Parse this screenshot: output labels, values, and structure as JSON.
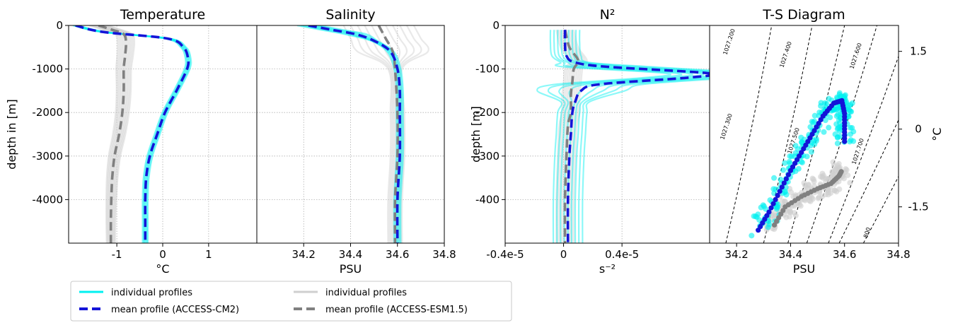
{
  "colors": {
    "cm2_individual": "#00f0f0",
    "cm2_mean": "#1414d8",
    "esm_individual": "#cfcfcf",
    "esm_mean": "#808080",
    "grid": "#b0b0b0",
    "isopycnal": "#000000"
  },
  "legend": {
    "cm2_individual_label": "individual profiles",
    "cm2_mean_label": "mean profile  (ACCESS-CM2)",
    "esm_individual_label": "individual profiles",
    "esm_mean_label": "mean profile  (ACCESS-ESM1.5)"
  },
  "chart_data": [
    {
      "type": "line",
      "title": "Temperature",
      "xlabel": "°C",
      "ylabel": "depth in [m]",
      "xlim": [
        -2.05,
        2.05
      ],
      "ylim": [
        -5000,
        0
      ],
      "xticks": [
        -1,
        0,
        1
      ],
      "xtick_labels": [
        "-1",
        "0",
        "1"
      ],
      "yticks": [
        0,
        -1000,
        -2000,
        -3000,
        -4000
      ],
      "ytick_labels": [
        "0",
        "-1000",
        "-2000",
        "-3000",
        "-4000"
      ],
      "grid": true,
      "series": [
        {
          "name": "mean profile  (ACCESS-CM2)",
          "depth": [
            0,
            -150,
            -300,
            -500,
            -750,
            -1000,
            -1500,
            -2000,
            -2500,
            -3000,
            -3500,
            -4000,
            -4500,
            -5000
          ],
          "values": [
            -1.9,
            -1.3,
            0.1,
            0.45,
            0.55,
            0.53,
            0.3,
            0.05,
            -0.12,
            -0.28,
            -0.36,
            -0.38,
            -0.38,
            -0.38
          ]
        },
        {
          "name": "mean profile  (ACCESS-ESM1.5)",
          "depth": [
            0,
            -100,
            -200,
            -400,
            -700,
            -1000,
            -1500,
            -2000,
            -2500,
            -3000,
            -3500,
            -4000,
            -4500,
            -5000
          ],
          "values": [
            -1.4,
            -1.1,
            -0.85,
            -0.8,
            -0.82,
            -0.85,
            -0.85,
            -0.88,
            -0.95,
            -1.05,
            -1.1,
            -1.12,
            -1.13,
            -1.13
          ]
        }
      ]
    },
    {
      "type": "line",
      "title": "Salinity",
      "xlabel": "PSU",
      "xlim": [
        34.0,
        34.8
      ],
      "ylim": [
        -5000,
        0
      ],
      "xticks": [
        34.2,
        34.4,
        34.6,
        34.8
      ],
      "xtick_labels": [
        "34.2",
        "34.4",
        "34.6",
        "34.8"
      ],
      "grid": true,
      "series": [
        {
          "name": "mean profile  (ACCESS-CM2)",
          "depth": [
            0,
            -100,
            -200,
            -350,
            -600,
            -1000,
            -1500,
            -2000,
            -3000,
            -4000,
            -5000
          ],
          "values": [
            34.22,
            34.32,
            34.42,
            34.5,
            34.57,
            34.6,
            34.61,
            34.61,
            34.61,
            34.6,
            34.6
          ],
          "note_x_unused": ""
        },
        {
          "name": "mean profile  (ACCESS-ESM1.5)",
          "depth": [
            0,
            -300,
            -600,
            -1000,
            -2000,
            -3000,
            -4000,
            -5000
          ],
          "values": [
            34.52,
            34.55,
            34.58,
            34.59,
            34.6,
            34.6,
            34.59,
            34.59
          ]
        }
      ]
    },
    {
      "type": "line",
      "title": "N²",
      "xlabel": "s⁻²",
      "ylabel": "depth [m]",
      "xlim": [
        -4e-06,
        1e-05
      ],
      "ylim": [
        -500,
        0
      ],
      "xticks": [
        -4e-06,
        0,
        4e-06
      ],
      "xtick_labels": [
        "-0.4e-5",
        "0",
        "0.4e-5"
      ],
      "yticks": [
        0,
        -100,
        -200,
        -300,
        -400
      ],
      "ytick_labels": [
        "0",
        "-100",
        "-200",
        "-300",
        "-400"
      ],
      "grid": true,
      "series": [
        {
          "name": "mean profile  (ACCESS-CM2)",
          "depth": [
            -10,
            -40,
            -70,
            -85,
            -95,
            -110,
            -120,
            -135,
            -150,
            -175,
            -200,
            -250,
            -300,
            -400,
            -500
          ],
          "values": [
            1e-07,
            1e-07,
            2e-07,
            8e-07,
            3e-06,
            1e-05,
            8.5e-06,
            2.5e-06,
            1.2e-06,
            8e-07,
            6e-07,
            5e-07,
            4e-07,
            3e-07,
            3e-07
          ]
        },
        {
          "name": "mean profile  (ACCESS-ESM1.5)",
          "depth": [
            -10,
            -50,
            -80,
            -100,
            -130,
            -160,
            -200,
            -230,
            -300,
            -400,
            -500
          ],
          "values": [
            1e-07,
            4e-07,
            1e-06,
            7e-07,
            6e-07,
            5e-07,
            5e-07,
            3e-07,
            2e-07,
            1e-07,
            1e-07
          ]
        }
      ]
    },
    {
      "type": "scatter",
      "title": "T-S Diagram",
      "xlabel": "PSU",
      "ylabel": "°C",
      "xlim": [
        34.1,
        34.8
      ],
      "ylim": [
        -2.2,
        2.0
      ],
      "xticks": [
        34.2,
        34.4,
        34.6,
        34.8
      ],
      "xtick_labels": [
        "34.2",
        "34.4",
        "34.6",
        "34.8"
      ],
      "yticks": [
        1.5,
        0,
        -1.5
      ],
      "ytick_labels": [
        "1.5",
        "0",
        "-1.5"
      ],
      "isopycnal_labels": [
        "1027.200",
        "1027.300",
        "1027.400",
        "1027.500",
        "1027.600",
        "1027.700",
        "800"
      ],
      "series": [
        {
          "name": "mean profile  (ACCESS-CM2)",
          "x": [
            34.28,
            34.32,
            34.36,
            34.4,
            34.44,
            34.48,
            34.52,
            34.56,
            34.59,
            34.6,
            34.6,
            34.6
          ],
          "y": [
            -1.95,
            -1.6,
            -1.2,
            -0.8,
            -0.45,
            -0.1,
            0.25,
            0.5,
            0.55,
            0.3,
            0.0,
            -0.3
          ]
        },
        {
          "name": "mean profile  (ACCESS-ESM1.5)",
          "x": [
            34.34,
            34.38,
            34.44,
            34.5,
            34.55,
            34.58,
            34.59
          ],
          "y": [
            -1.85,
            -1.5,
            -1.3,
            -1.15,
            -1.05,
            -0.9,
            -0.8
          ]
        }
      ]
    }
  ]
}
